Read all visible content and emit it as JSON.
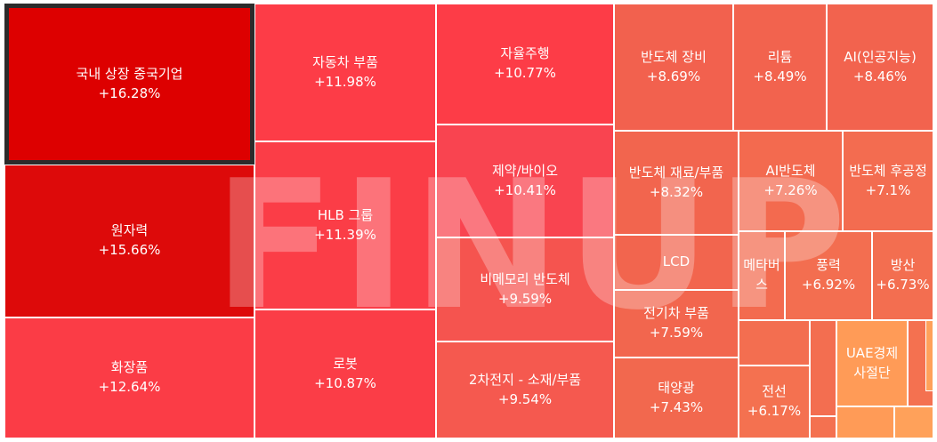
{
  "chart_data": {
    "type": "treemap",
    "selected": "국내 상장 중국기업",
    "watermark": "FINUP",
    "items": [
      {
        "label": "국내 상장 중국기업",
        "value": "+16.28%",
        "color": "#dd0000"
      },
      {
        "label": "원자력",
        "value": "+15.66%",
        "color": "#dd0a0a"
      },
      {
        "label": "화장품",
        "value": "+12.64%",
        "color": "#fb3c46"
      },
      {
        "label": "자동차 부품",
        "value": "+11.98%",
        "color": "#fd3c47"
      },
      {
        "label": "HLB 그룹",
        "value": "+11.39%",
        "color": "#fb3d47"
      },
      {
        "label": "로봇",
        "value": "+10.87%",
        "color": "#fb3d47"
      },
      {
        "label": "자율주행",
        "value": "+10.77%",
        "color": "#fd3c47"
      },
      {
        "label": "제약/바이오",
        "value": "+10.41%",
        "color": "#f94450"
      },
      {
        "label": "비메모리 반도체",
        "value": "+9.59%",
        "color": "#f5544f"
      },
      {
        "label": "2차전지 - 소재/부품",
        "value": "+9.54%",
        "color": "#f5594f"
      },
      {
        "label": "반도체 장비",
        "value": "+8.69%",
        "color": "#f2614e"
      },
      {
        "label": "리튬",
        "value": "+8.49%",
        "color": "#f2634e"
      },
      {
        "label": "AI(인공지능)",
        "value": "+8.46%",
        "color": "#f2634e"
      },
      {
        "label": "반도체 재료/부품",
        "value": "+8.32%",
        "color": "#f2654e"
      },
      {
        "label": "AI반도체",
        "value": "+7.26%",
        "color": "#f36a4f"
      },
      {
        "label": "반도체 후공정",
        "value": "+7.1%",
        "color": "#f36c50"
      },
      {
        "label": "LCD",
        "value": "",
        "color": "#f2654e"
      },
      {
        "label": "전기차 부품",
        "value": "+7.59%",
        "color": "#f2664e"
      },
      {
        "label": "태양광",
        "value": "+7.43%",
        "color": "#f2684e"
      },
      {
        "label": "메타버스",
        "value": "",
        "color": "#f36b4f"
      },
      {
        "label": "풍력",
        "value": "+6.92%",
        "color": "#f36e50"
      },
      {
        "label": "방산",
        "value": "+6.73%",
        "color": "#f36e50"
      },
      {
        "label": "전선",
        "value": "+6.17%",
        "color": "#f47150"
      },
      {
        "label": "UAE경제사절단",
        "value": "",
        "color": "#ff9b57"
      },
      {
        "label": "",
        "value": "",
        "color": "#f36e50"
      },
      {
        "label": "",
        "value": "",
        "color": "#f36e50"
      },
      {
        "label": "",
        "value": "",
        "color": "#f47150"
      },
      {
        "label": "",
        "value": "",
        "color": "#f47150"
      },
      {
        "label": "",
        "value": "",
        "color": "#ff9b57"
      },
      {
        "label": "",
        "value": "",
        "color": "#ffa15a"
      },
      {
        "label": "",
        "value": "",
        "color": "#ffa15a"
      }
    ]
  }
}
